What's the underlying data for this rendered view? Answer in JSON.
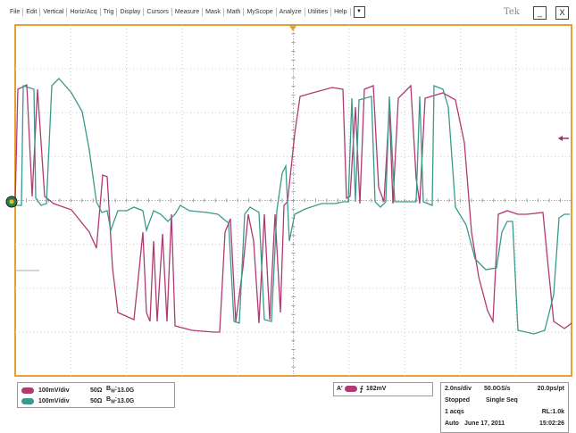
{
  "menu": {
    "items": [
      "File",
      "Edit",
      "Vertical",
      "Horiz/Acq",
      "Trig",
      "Display",
      "Cursors",
      "Measure",
      "Mask",
      "Math",
      "MyScope",
      "Analyze",
      "Utilities",
      "Help"
    ],
    "dropdown_glyph": "▼"
  },
  "window": {
    "brand": "Tek",
    "minimize_glyph": "_",
    "close_glyph": "X"
  },
  "colors": {
    "frame": "#e8a030",
    "grid": "#c9c9c9",
    "ch1": "#b03a73",
    "ch2": "#3a9a8c",
    "trigger_marker": "#9a3068"
  },
  "channels": [
    {
      "scale": "100mV/div",
      "termination": "50Ω",
      "bandwidth": "13.0G",
      "color": "#b03a73"
    },
    {
      "scale": "100mV/div",
      "termination": "50Ω",
      "bandwidth": "13.0G",
      "color": "#3a9a8c"
    }
  ],
  "trigger": {
    "tag": "A'",
    "slope_glyph": "⨍",
    "level": "182mV"
  },
  "acquisition": {
    "timebase": "2.0ns/div",
    "sample_rate": "50.0GS/s",
    "resolution": "20.0ps/pt",
    "state": "Stopped",
    "mode": "Single Seq",
    "acqs": "1 acqs",
    "record_length": "RL:1.0k",
    "trigger_mode": "Auto",
    "date": "June 17, 2011",
    "time": "15:02:26"
  }
}
